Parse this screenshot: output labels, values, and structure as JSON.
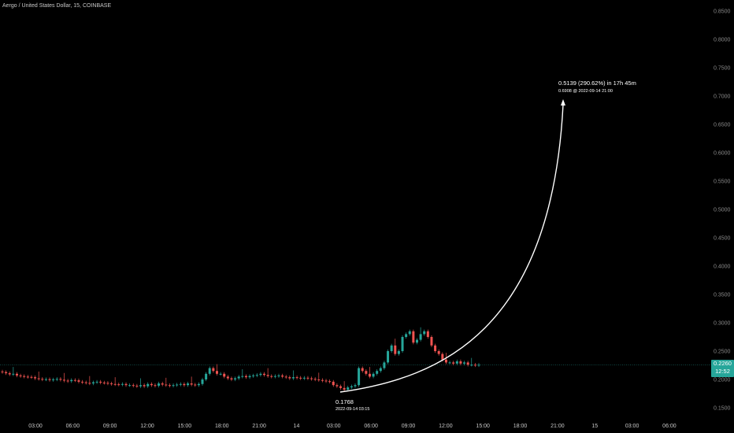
{
  "header": {
    "symbol_line": "Aergo / United States Dollar, 15, COINBASE"
  },
  "colors": {
    "up": "#26a69a",
    "down": "#ef5350",
    "wick_up": "#26a69a",
    "wick_down": "#ef5350",
    "accent": "#26a69a"
  },
  "last_price": {
    "value": "0.2260",
    "countdown": "12:52"
  },
  "chart_data": {
    "type": "candlestick",
    "title": "Aergo / United States Dollar, 15, COINBASE",
    "y_axis": {
      "ticks": [
        "0.8500",
        "0.8000",
        "0.7500",
        "0.7000",
        "0.6500",
        "0.6000",
        "0.5500",
        "0.5000",
        "0.4500",
        "0.4000",
        "0.3500",
        "0.3000",
        "0.2500",
        "0.2000",
        "0.1500"
      ],
      "range": [
        0.15,
        0.85
      ]
    },
    "x_axis": {
      "ticks": [
        "03:00",
        "06:00",
        "09:00",
        "12:00",
        "15:00",
        "18:00",
        "21:00",
        "14",
        "03:00",
        "06:00",
        "09:00",
        "12:00",
        "15:00",
        "18:00",
        "21:00",
        "15",
        "03:00",
        "06:00"
      ]
    },
    "price_line": 0.226,
    "close_series": [
      0.213,
      0.211,
      0.209,
      0.21,
      0.207,
      0.206,
      0.205,
      0.2045,
      0.204,
      0.202,
      0.201,
      0.2,
      0.2005,
      0.199,
      0.2,
      0.201,
      0.1995,
      0.198,
      0.197,
      0.199,
      0.1985,
      0.196,
      0.195,
      0.194,
      0.193,
      0.195,
      0.196,
      0.1945,
      0.194,
      0.193,
      0.192,
      0.1915,
      0.191,
      0.192,
      0.19,
      0.19,
      0.189,
      0.188,
      0.19,
      0.188,
      0.192,
      0.19,
      0.189,
      0.193,
      0.191,
      0.19,
      0.189,
      0.19,
      0.191,
      0.192,
      0.19,
      0.193,
      0.191,
      0.19,
      0.192,
      0.2,
      0.21,
      0.22,
      0.215,
      0.21,
      0.21,
      0.205,
      0.202,
      0.2,
      0.202,
      0.205,
      0.206,
      0.204,
      0.206,
      0.207,
      0.208,
      0.21,
      0.208,
      0.206,
      0.205,
      0.206,
      0.207,
      0.205,
      0.204,
      0.202,
      0.204,
      0.203,
      0.202,
      0.203,
      0.202,
      0.201,
      0.2,
      0.199,
      0.198,
      0.197,
      0.196,
      0.19,
      0.188,
      0.185,
      0.182,
      0.186,
      0.188,
      0.19,
      0.22,
      0.215,
      0.21,
      0.205,
      0.21,
      0.215,
      0.22,
      0.23,
      0.25,
      0.26,
      0.245,
      0.25,
      0.275,
      0.28,
      0.285,
      0.265,
      0.27,
      0.28,
      0.285,
      0.275,
      0.26,
      0.25,
      0.245,
      0.235,
      0.23,
      0.23,
      0.228,
      0.232,
      0.228,
      0.23,
      0.226,
      0.226,
      0.225,
      0.226
    ],
    "annotations": {
      "start_price": "0.1768",
      "start_time": "2022-09-14 03:15",
      "end_summary": "0.5139 (290.62%) in 17h 45m",
      "end_detail": "0.6908 @ 2022-09-14  21:00"
    }
  }
}
